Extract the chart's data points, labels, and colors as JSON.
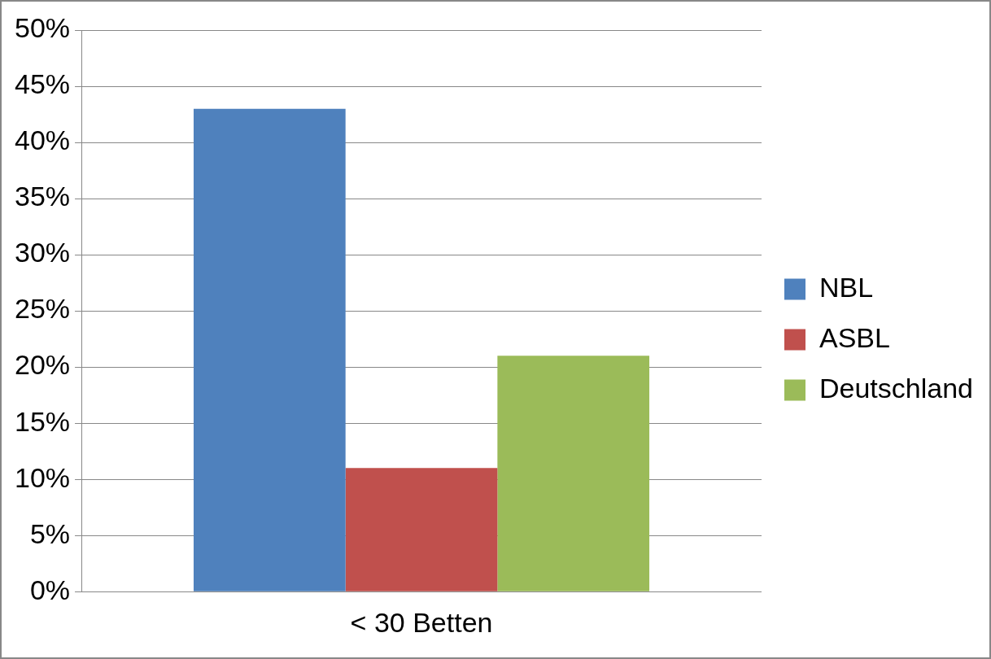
{
  "chart_data": {
    "type": "bar",
    "categories": [
      "< 30 Betten"
    ],
    "series": [
      {
        "name": "NBL",
        "color": "#4f81bd",
        "values": [
          43
        ]
      },
      {
        "name": "ASBL",
        "color": "#c0504d",
        "values": [
          11
        ]
      },
      {
        "name": "Deutschland",
        "color": "#9bbb59",
        "values": [
          21
        ]
      }
    ],
    "ylim": [
      0,
      50
    ],
    "yticks": [
      {
        "value": 0,
        "label": "0%"
      },
      {
        "value": 5,
        "label": "5%"
      },
      {
        "value": 10,
        "label": "10%"
      },
      {
        "value": 15,
        "label": "15%"
      },
      {
        "value": 20,
        "label": "20%"
      },
      {
        "value": 25,
        "label": "25%"
      },
      {
        "value": 30,
        "label": "30%"
      },
      {
        "value": 35,
        "label": "35%"
      },
      {
        "value": 40,
        "label": "40%"
      },
      {
        "value": 45,
        "label": "45%"
      },
      {
        "value": 50,
        "label": "50%"
      }
    ],
    "grid": "y",
    "legend": "right"
  }
}
